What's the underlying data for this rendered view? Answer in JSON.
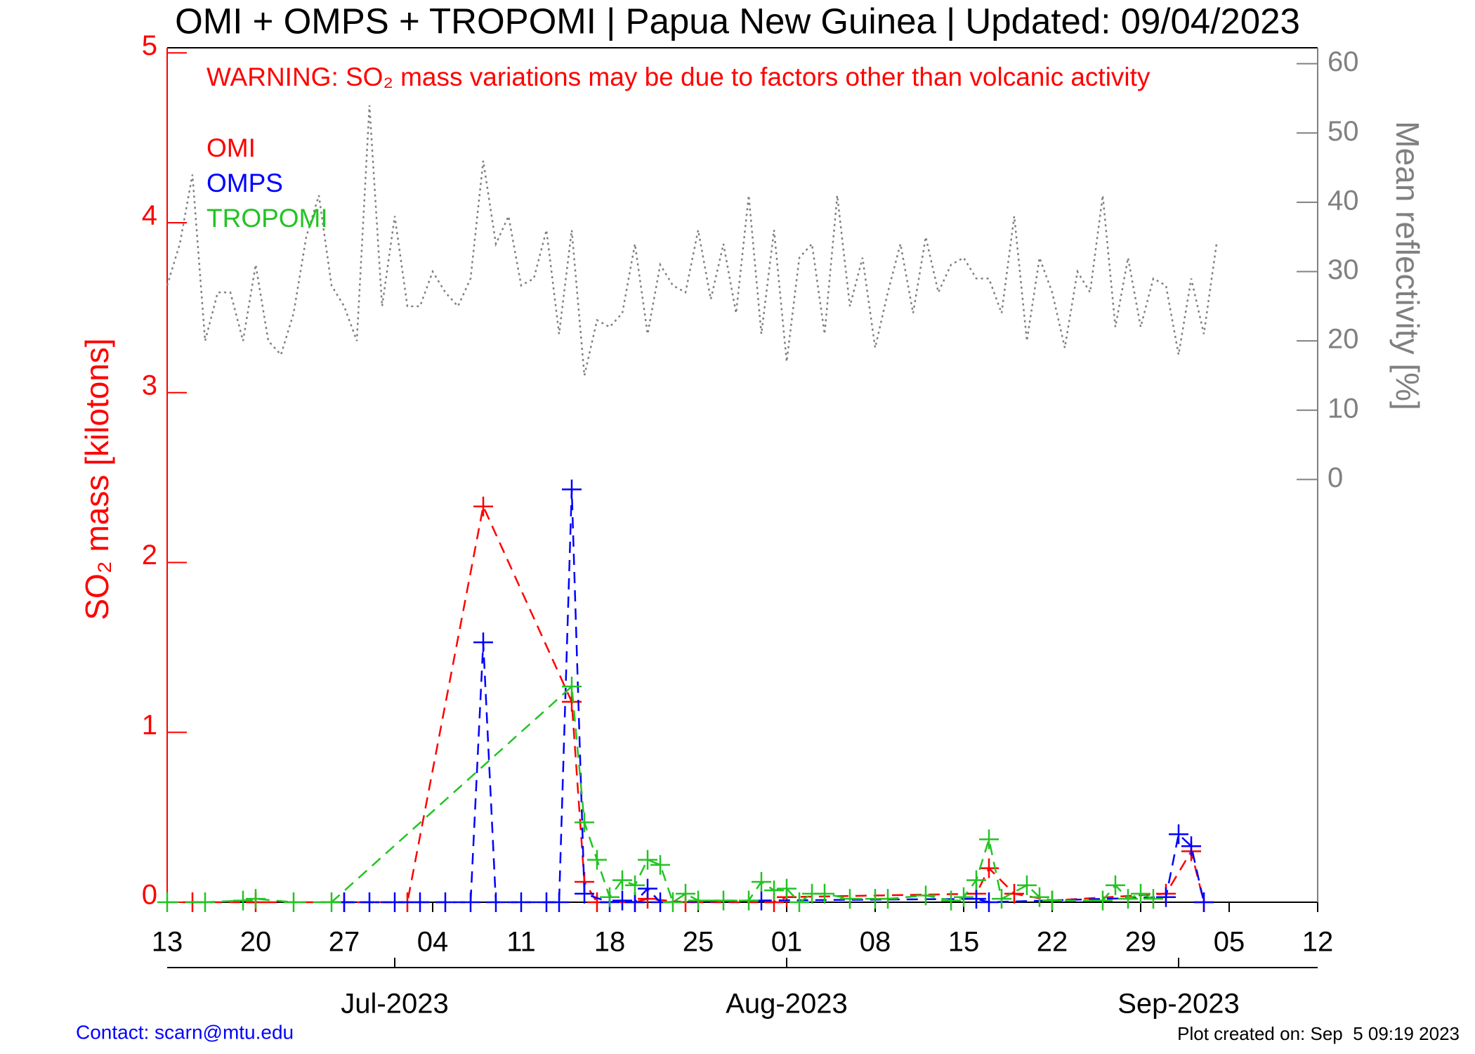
{
  "chart_data": {
    "type": "line",
    "title": "OMI + OMPS + TROPOMI | Papua New Guinea | Updated: 09/04/2023",
    "warning": "WARNING: SO₂ mass variations may be due to factors other than volcanic activity",
    "ylabel": "SO₂ mass [kilotons]",
    "y2label": "Mean reflectivity [%]",
    "contact": "Contact: scarn@mtu.edu",
    "created": "Plot created on: Sep  5 09:19 2023",
    "xlim": [
      "2023-06-13",
      "2023-09-12"
    ],
    "xticks": [
      {
        "value": "2023-06-13",
        "label": "13"
      },
      {
        "value": "2023-06-20",
        "label": "20"
      },
      {
        "value": "2023-06-27",
        "label": "27"
      },
      {
        "value": "2023-07-04",
        "label": "04"
      },
      {
        "value": "2023-07-11",
        "label": "11"
      },
      {
        "value": "2023-07-18",
        "label": "18"
      },
      {
        "value": "2023-07-25",
        "label": "25"
      },
      {
        "value": "2023-08-01",
        "label": "01"
      },
      {
        "value": "2023-08-08",
        "label": "08"
      },
      {
        "value": "2023-08-15",
        "label": "15"
      },
      {
        "value": "2023-08-22",
        "label": "22"
      },
      {
        "value": "2023-08-29",
        "label": "29"
      },
      {
        "value": "2023-09-05",
        "label": "05"
      },
      {
        "value": "2023-09-12",
        "label": "12"
      }
    ],
    "month_ticks": [
      {
        "value": "2023-07-01",
        "label": "Jul-2023"
      },
      {
        "value": "2023-08-01",
        "label": "Aug-2023"
      },
      {
        "value": "2023-09-01",
        "label": "Sep-2023"
      }
    ],
    "ylim": [
      0,
      5.03
    ],
    "yticks": [
      0,
      1,
      2,
      3,
      4,
      5
    ],
    "y2lim": [
      -61,
      62.3
    ],
    "y2ticks": [
      0,
      10,
      20,
      30,
      40,
      50,
      60
    ],
    "series": [
      {
        "name": "OMI",
        "color": "#ff0000",
        "x": [
          "2023-06-15",
          "2023-06-20",
          "2023-06-27",
          "2023-07-02",
          "2023-07-08",
          "2023-07-15",
          "2023-07-16",
          "2023-07-17",
          "2023-07-20",
          "2023-07-21",
          "2023-07-24",
          "2023-07-31",
          "2023-08-01",
          "2023-08-16",
          "2023-08-17",
          "2023-08-19",
          "2023-08-22",
          "2023-08-31",
          "2023-09-02",
          "2023-09-03"
        ],
        "values": [
          0,
          0,
          0,
          0,
          2.33,
          1.18,
          0.12,
          0,
          0,
          0.02,
          0,
          0,
          0.03,
          0.05,
          0.2,
          0.05,
          0.01,
          0.05,
          0.3,
          0
        ]
      },
      {
        "name": "OMPS",
        "color": "#0000ff",
        "x": [
          "2023-06-27",
          "2023-06-29",
          "2023-07-01",
          "2023-07-03",
          "2023-07-05",
          "2023-07-07",
          "2023-07-08",
          "2023-07-09",
          "2023-07-11",
          "2023-07-13",
          "2023-07-14",
          "2023-07-15",
          "2023-07-16",
          "2023-07-18",
          "2023-07-19",
          "2023-07-20",
          "2023-07-21",
          "2023-07-22",
          "2023-07-30",
          "2023-08-16",
          "2023-08-17",
          "2023-08-31",
          "2023-09-01",
          "2023-09-02",
          "2023-09-03"
        ],
        "values": [
          0,
          0,
          0,
          0,
          0,
          0,
          1.53,
          0,
          0,
          0,
          0,
          2.43,
          0.05,
          0,
          0.01,
          0,
          0.08,
          0,
          0.01,
          0.02,
          0,
          0.03,
          0.4,
          0.33,
          0
        ]
      },
      {
        "name": "TROPOMI",
        "color": "#22c422",
        "x": [
          "2023-06-13",
          "2023-06-16",
          "2023-06-19",
          "2023-06-20",
          "2023-06-23",
          "2023-06-26",
          "2023-07-15",
          "2023-07-16",
          "2023-07-17",
          "2023-07-18",
          "2023-07-19",
          "2023-07-20",
          "2023-07-21",
          "2023-07-22",
          "2023-07-23",
          "2023-07-24",
          "2023-07-25",
          "2023-07-27",
          "2023-07-29",
          "2023-07-30",
          "2023-07-31",
          "2023-08-01",
          "2023-08-02",
          "2023-08-03",
          "2023-08-04",
          "2023-08-06",
          "2023-08-08",
          "2023-08-09",
          "2023-08-12",
          "2023-08-14",
          "2023-08-15",
          "2023-08-16",
          "2023-08-17",
          "2023-08-18",
          "2023-08-20",
          "2023-08-21",
          "2023-08-22",
          "2023-08-26",
          "2023-08-27",
          "2023-08-28",
          "2023-08-29",
          "2023-08-30"
        ],
        "values": [
          0,
          0,
          0.01,
          0.02,
          0,
          0,
          1.27,
          0.47,
          0.25,
          0.03,
          0.13,
          0.1,
          0.25,
          0.22,
          0,
          0.05,
          0.01,
          0.01,
          0.01,
          0.12,
          0.07,
          0.08,
          0,
          0.05,
          0.05,
          0.02,
          0.02,
          0.02,
          0.04,
          0.01,
          0.03,
          0.13,
          0.37,
          0.02,
          0.1,
          0.03,
          0.01,
          0.01,
          0.1,
          0.02,
          0.05,
          0.02
        ]
      },
      {
        "axis": "y2",
        "color": "#808080",
        "x": [
          "2023-06-13",
          "2023-06-14",
          "2023-06-15",
          "2023-06-16",
          "2023-06-17",
          "2023-06-18",
          "2023-06-19",
          "2023-06-20",
          "2023-06-21",
          "2023-06-22",
          "2023-06-23",
          "2023-06-24",
          "2023-06-25",
          "2023-06-26",
          "2023-06-27",
          "2023-06-28",
          "2023-06-29",
          "2023-06-30",
          "2023-07-01",
          "2023-07-02",
          "2023-07-03",
          "2023-07-04",
          "2023-07-05",
          "2023-07-06",
          "2023-07-07",
          "2023-07-08",
          "2023-07-09",
          "2023-07-10",
          "2023-07-11",
          "2023-07-12",
          "2023-07-13",
          "2023-07-14",
          "2023-07-15",
          "2023-07-16",
          "2023-07-17",
          "2023-07-18",
          "2023-07-19",
          "2023-07-20",
          "2023-07-21",
          "2023-07-22",
          "2023-07-23",
          "2023-07-24",
          "2023-07-25",
          "2023-07-26",
          "2023-07-27",
          "2023-07-28",
          "2023-07-29",
          "2023-07-30",
          "2023-07-31",
          "2023-08-01",
          "2023-08-02",
          "2023-08-03",
          "2023-08-04",
          "2023-08-05",
          "2023-08-06",
          "2023-08-07",
          "2023-08-08",
          "2023-08-09",
          "2023-08-10",
          "2023-08-11",
          "2023-08-12",
          "2023-08-13",
          "2023-08-14",
          "2023-08-15",
          "2023-08-16",
          "2023-08-17",
          "2023-08-18",
          "2023-08-19",
          "2023-08-20",
          "2023-08-21",
          "2023-08-22",
          "2023-08-23",
          "2023-08-24",
          "2023-08-25",
          "2023-08-26",
          "2023-08-27",
          "2023-08-28",
          "2023-08-29",
          "2023-08-30",
          "2023-08-31",
          "2023-09-01",
          "2023-09-02",
          "2023-09-03",
          "2023-09-04"
        ],
        "values": [
          28,
          34,
          44,
          20,
          27,
          27,
          20,
          31,
          20,
          18,
          24,
          35,
          41,
          28,
          25,
          20,
          54,
          25,
          38,
          25,
          25,
          30,
          27,
          25,
          29,
          46,
          34,
          38,
          28,
          29,
          36,
          21,
          36,
          15,
          23,
          22,
          24,
          34,
          21,
          31,
          28,
          27,
          36,
          26,
          34,
          24,
          41,
          21,
          36,
          17,
          32,
          34,
          21,
          41,
          25,
          32,
          19,
          27,
          34,
          24,
          35,
          27,
          31,
          32,
          29,
          29,
          24,
          38,
          20,
          32,
          27,
          19,
          30,
          27,
          41,
          22,
          32,
          22,
          29,
          28,
          18,
          29,
          21,
          34
        ]
      }
    ]
  }
}
